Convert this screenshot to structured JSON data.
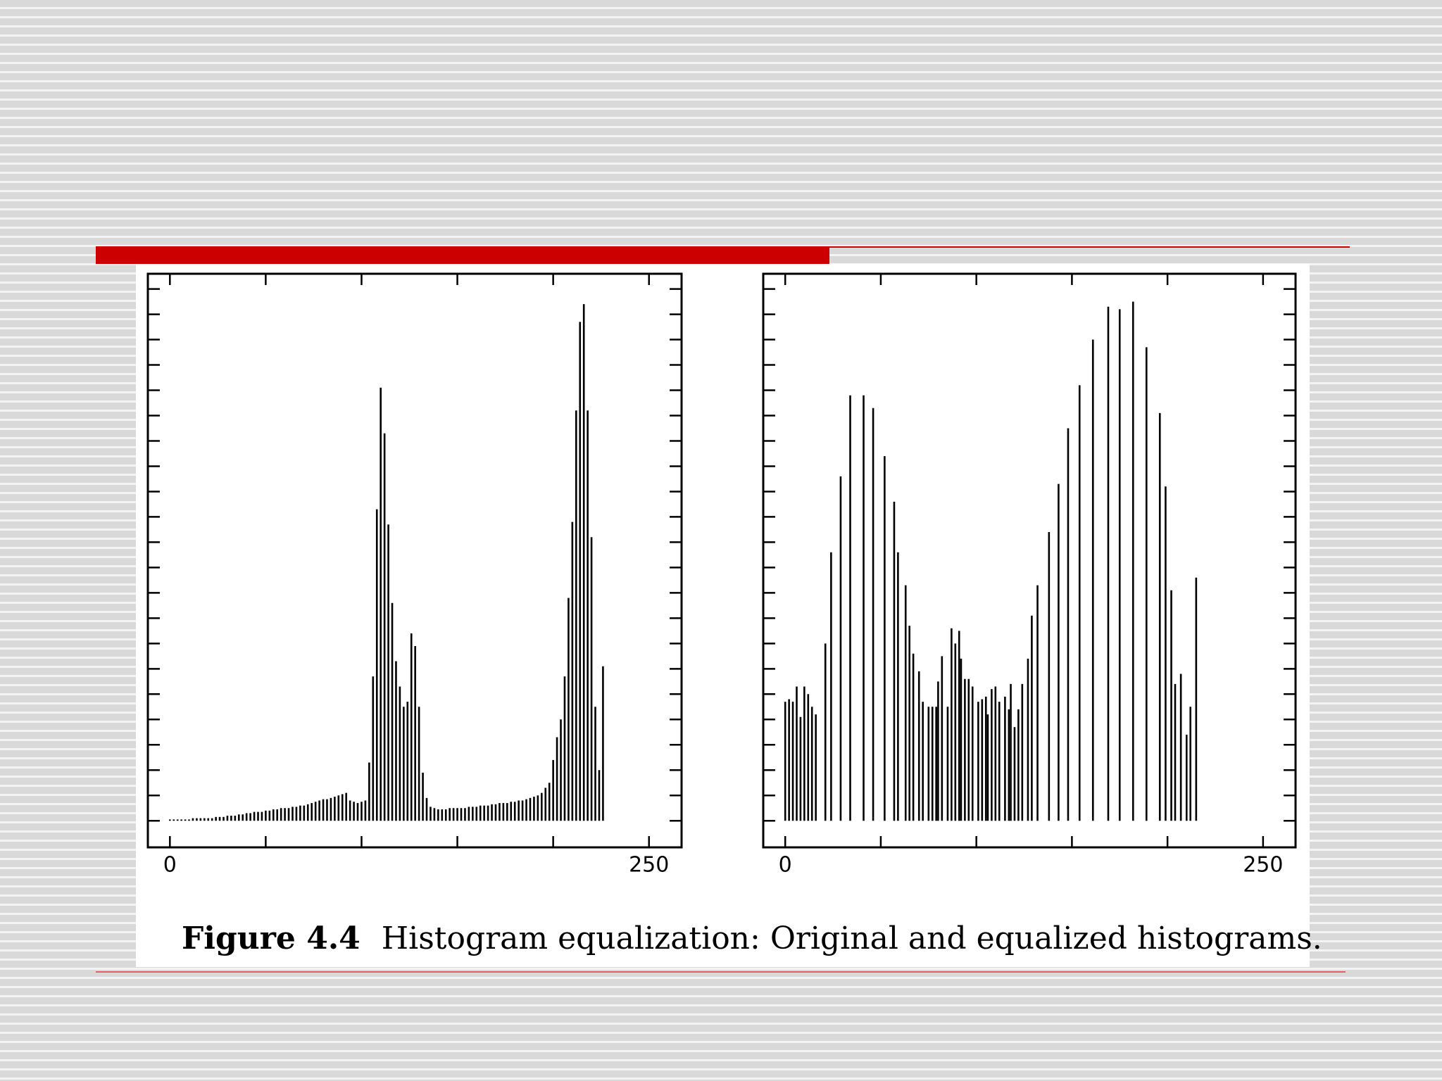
{
  "chart_data": [
    {
      "type": "bar",
      "color": "#000000",
      "x": [
        0,
        2,
        4,
        6,
        8,
        10,
        12,
        14,
        16,
        18,
        20,
        22,
        24,
        26,
        28,
        30,
        32,
        34,
        36,
        38,
        40,
        42,
        44,
        46,
        48,
        50,
        52,
        54,
        56,
        58,
        60,
        62,
        64,
        66,
        68,
        70,
        72,
        74,
        76,
        78,
        80,
        82,
        84,
        86,
        88,
        90,
        92,
        94,
        96,
        98,
        100,
        102,
        104,
        106,
        108,
        110,
        112,
        114,
        116,
        118,
        120,
        122,
        124,
        126,
        128,
        130,
        132,
        134,
        136,
        138,
        140,
        142,
        144,
        146,
        148,
        150,
        152,
        154,
        156,
        158,
        160,
        162,
        164,
        166,
        168,
        170,
        172,
        174,
        176,
        178,
        180,
        182,
        184,
        186,
        188,
        190,
        192,
        194,
        196,
        198,
        200,
        202,
        204,
        206,
        208,
        210,
        212,
        214,
        216,
        218,
        220,
        222,
        224,
        226
      ],
      "values": [
        0.05,
        0.05,
        0.05,
        0.05,
        0.05,
        0.05,
        0.1,
        0.1,
        0.1,
        0.1,
        0.1,
        0.1,
        0.15,
        0.15,
        0.15,
        0.2,
        0.2,
        0.2,
        0.25,
        0.25,
        0.3,
        0.3,
        0.35,
        0.35,
        0.35,
        0.4,
        0.4,
        0.45,
        0.45,
        0.5,
        0.5,
        0.5,
        0.55,
        0.55,
        0.6,
        0.6,
        0.65,
        0.7,
        0.75,
        0.8,
        0.85,
        0.85,
        0.9,
        0.95,
        1.0,
        1.05,
        1.1,
        0.8,
        0.75,
        0.7,
        0.75,
        0.8,
        2.3,
        5.7,
        12.3,
        17.1,
        15.3,
        11.7,
        8.6,
        6.3,
        5.3,
        4.5,
        4.7,
        7.4,
        6.9,
        4.5,
        1.9,
        0.9,
        0.55,
        0.5,
        0.45,
        0.45,
        0.45,
        0.5,
        0.5,
        0.5,
        0.5,
        0.5,
        0.55,
        0.55,
        0.55,
        0.6,
        0.6,
        0.6,
        0.65,
        0.65,
        0.7,
        0.7,
        0.7,
        0.75,
        0.75,
        0.8,
        0.8,
        0.85,
        0.9,
        0.95,
        1.0,
        1.1,
        1.3,
        1.5,
        2.4,
        3.3,
        4.0,
        5.7,
        8.8,
        11.8,
        16.2,
        19.7,
        20.4,
        16.2,
        11.2,
        4.5,
        2.0,
        6.1
      ],
      "xlim": [
        -11.5,
        267
      ],
      "xticks": [
        0,
        250
      ],
      "xtickmarks": [
        0,
        50,
        100,
        150,
        200,
        250
      ],
      "ylim": [
        -1.05,
        21.6
      ],
      "ytickmarks": [
        0,
        1,
        2,
        3,
        4,
        5,
        6,
        7,
        8,
        9,
        10,
        11,
        12,
        13,
        14,
        15,
        16,
        17,
        18,
        19,
        20,
        21
      ]
    },
    {
      "type": "bar",
      "color": "#000000",
      "x": [
        0,
        2,
        4,
        6,
        8,
        10,
        12,
        14,
        16,
        21,
        24,
        29,
        34,
        41,
        46,
        52,
        57,
        59,
        63,
        65,
        67,
        70,
        72,
        75,
        77,
        79,
        80,
        82,
        85,
        87,
        89,
        91,
        92,
        94,
        96,
        98,
        101,
        103,
        105,
        106,
        108,
        110,
        112,
        115,
        117,
        118,
        120,
        122,
        124,
        127,
        129,
        132,
        138,
        143,
        148,
        154,
        161,
        169,
        175,
        182,
        189,
        196,
        199,
        202,
        204,
        207,
        210,
        212,
        215
      ],
      "values": [
        4.7,
        4.8,
        4.7,
        5.3,
        4.1,
        5.3,
        5.0,
        4.5,
        4.2,
        7.0,
        10.6,
        13.6,
        16.8,
        16.8,
        16.3,
        14.4,
        12.6,
        10.6,
        9.3,
        7.7,
        6.6,
        5.9,
        4.7,
        4.5,
        4.5,
        4.5,
        5.5,
        6.5,
        4.5,
        7.6,
        7.0,
        7.5,
        6.4,
        5.6,
        5.6,
        5.3,
        4.7,
        4.8,
        4.9,
        4.2,
        5.2,
        5.3,
        4.7,
        4.9,
        4.4,
        5.4,
        3.7,
        4.4,
        5.4,
        6.4,
        8.1,
        9.3,
        11.4,
        13.3,
        15.5,
        17.2,
        19.0,
        20.3,
        20.2,
        20.5,
        18.7,
        16.1,
        13.2,
        9.1,
        5.4,
        5.8,
        3.4,
        4.5,
        9.6
      ],
      "xlim": [
        -11.5,
        267
      ],
      "xticks": [
        0,
        250
      ],
      "xtickmarks": [
        0,
        50,
        100,
        150,
        200,
        250
      ],
      "ylim": [
        -1.05,
        21.6
      ],
      "ytickmarks": [
        0,
        1,
        2,
        3,
        4,
        5,
        6,
        7,
        8,
        9,
        10,
        11,
        12,
        13,
        14,
        15,
        16,
        17,
        18,
        19,
        20,
        21
      ]
    }
  ],
  "caption": {
    "label": "Figure 4.4",
    "text": "Histogram equalization: Original and equalized histograms."
  }
}
